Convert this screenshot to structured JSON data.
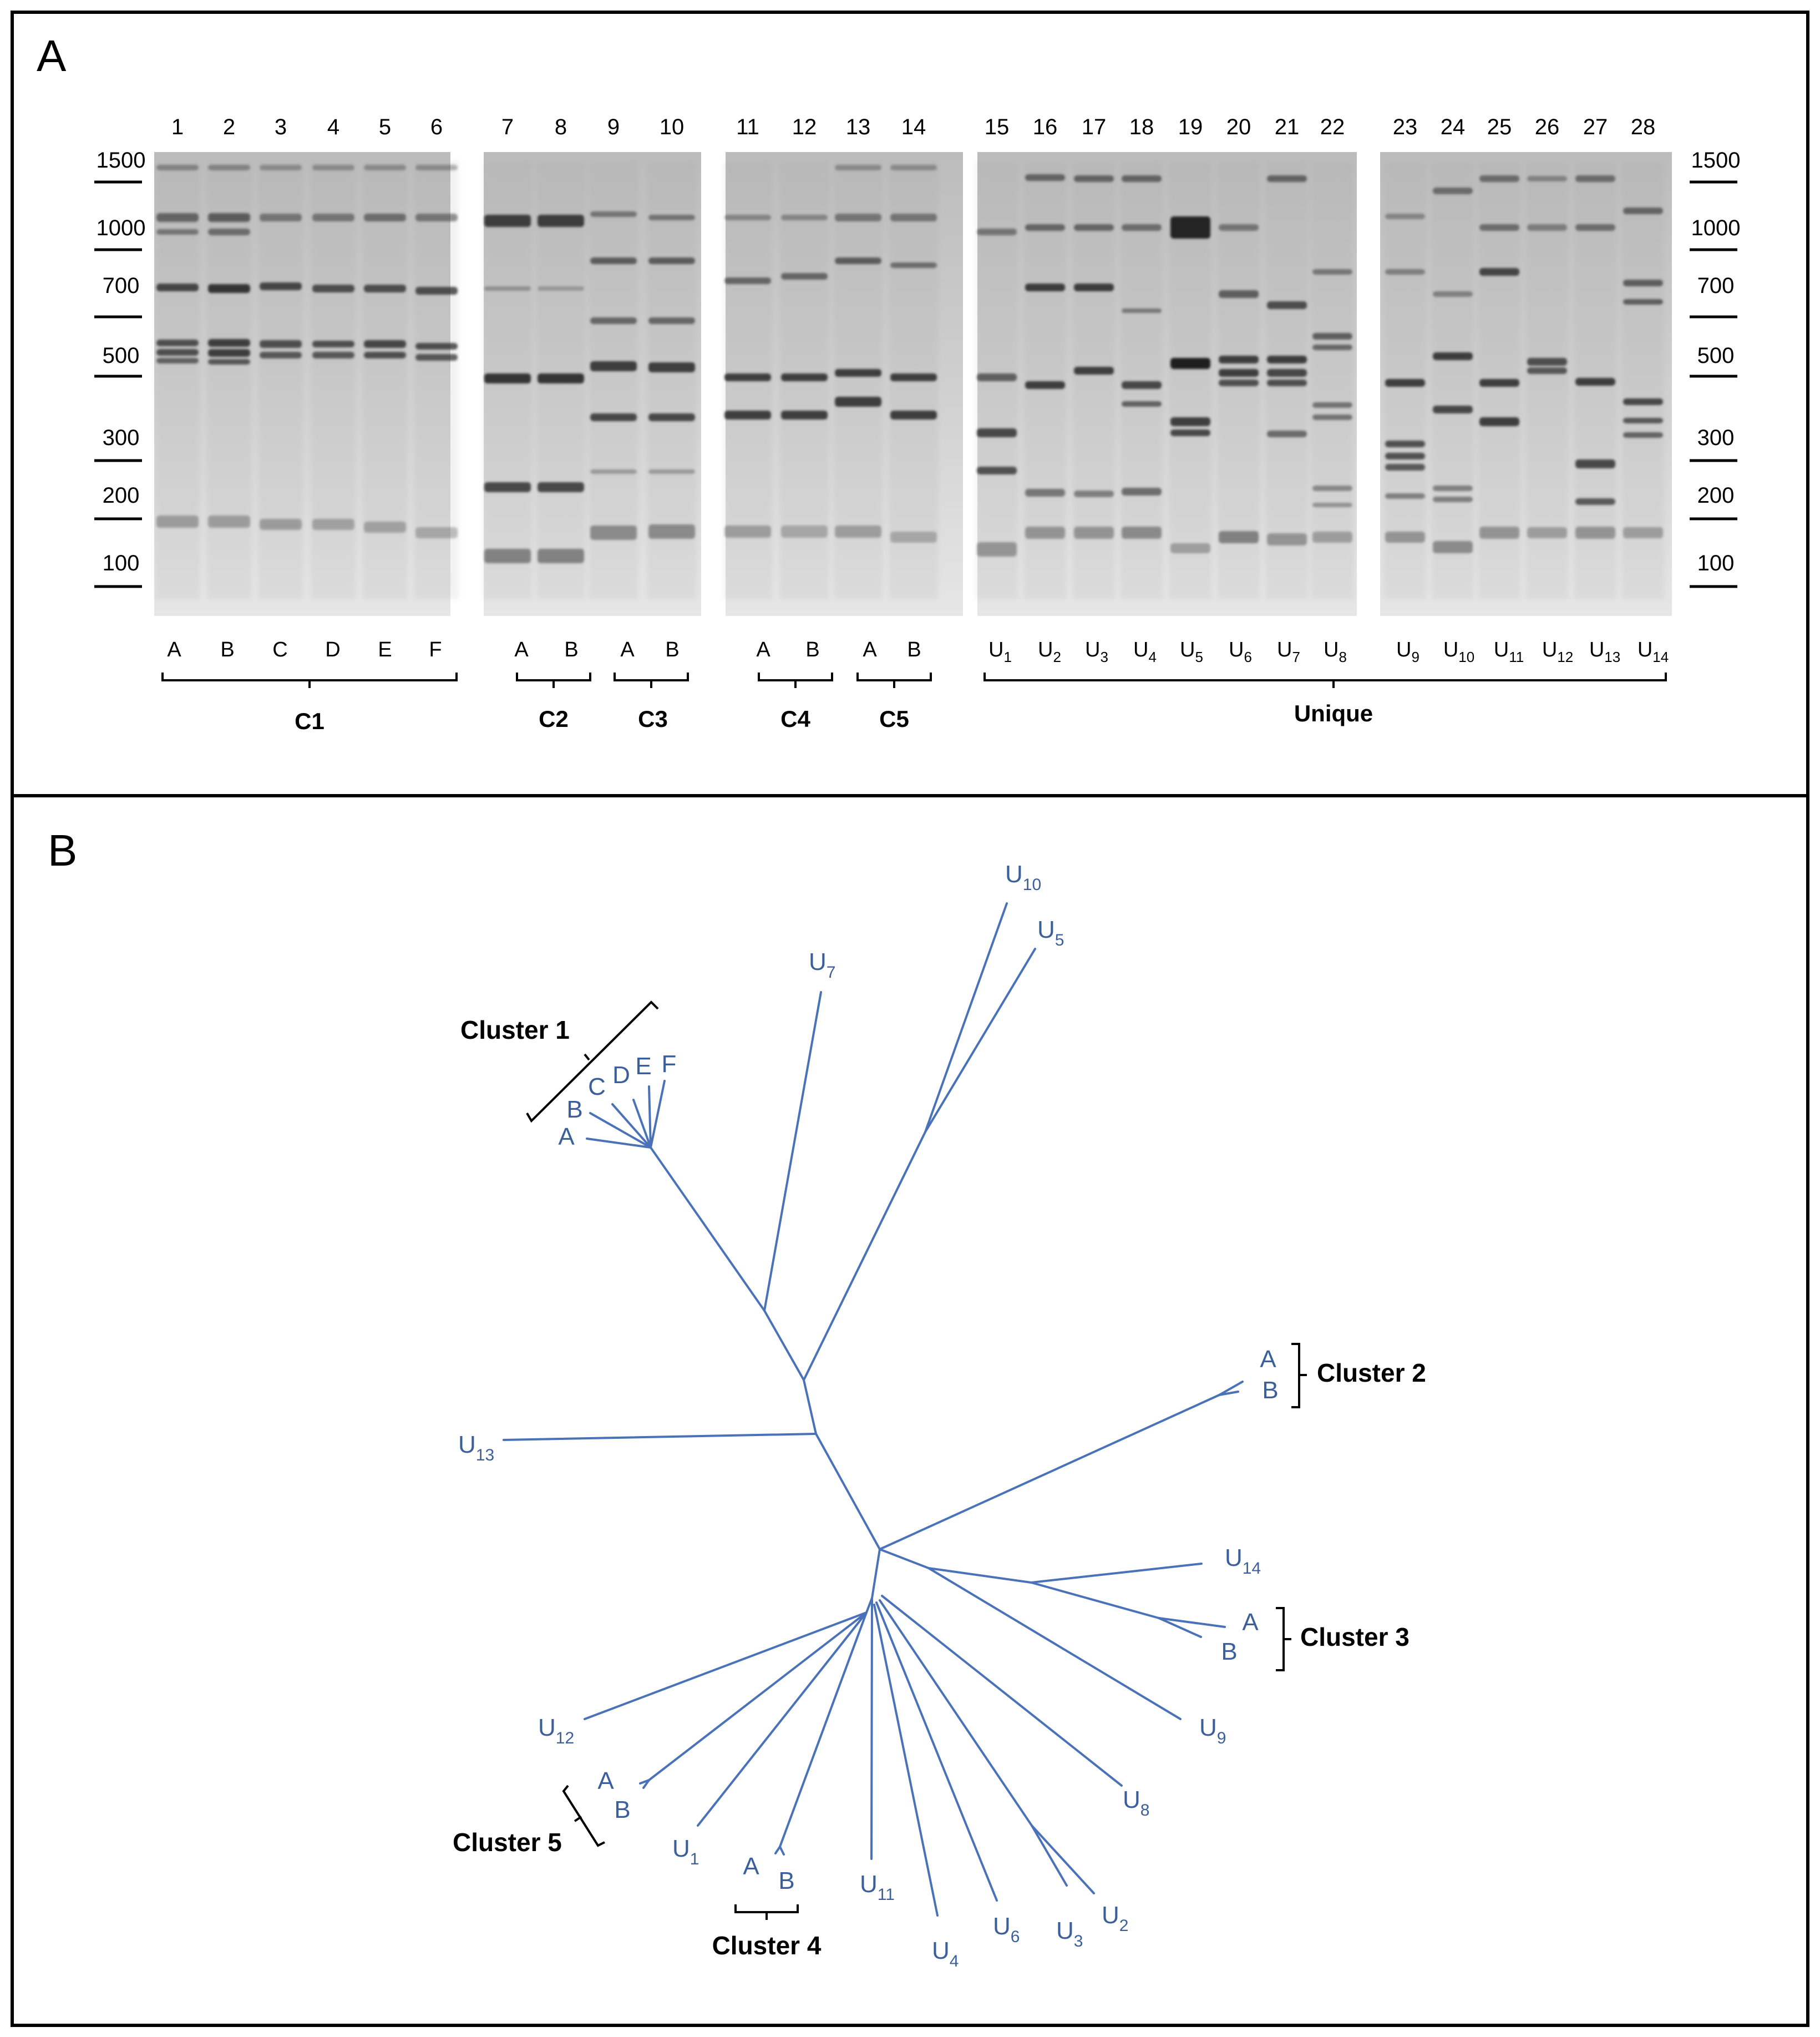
{
  "panel_a": {
    "label": "A",
    "lane_numbers": [
      "1",
      "2",
      "3",
      "4",
      "5",
      "6",
      "7",
      "8",
      "9",
      "10",
      "11",
      "12",
      "13",
      "14",
      "15",
      "16",
      "17",
      "18",
      "19",
      "20",
      "21",
      "22",
      "23",
      "24",
      "25",
      "26",
      "27",
      "28"
    ],
    "size_marker_labels": [
      "1500",
      "1000",
      "700",
      "500",
      "300",
      "200",
      "100"
    ],
    "lane_labels_groups": [
      [
        "A",
        "B",
        "C",
        "D",
        "E",
        "F"
      ],
      [
        "A",
        "B",
        "A",
        "B"
      ],
      [
        "A",
        "B",
        "A",
        "B"
      ]
    ],
    "unique_labels": [
      {
        "base": "U",
        "sub": "1"
      },
      {
        "base": "U",
        "sub": "2"
      },
      {
        "base": "U",
        "sub": "3"
      },
      {
        "base": "U",
        "sub": "4"
      },
      {
        "base": "U",
        "sub": "5"
      },
      {
        "base": "U",
        "sub": "6"
      },
      {
        "base": "U",
        "sub": "7"
      },
      {
        "base": "U",
        "sub": "8"
      },
      {
        "base": "U",
        "sub": "9"
      },
      {
        "base": "U",
        "sub": "10"
      },
      {
        "base": "U",
        "sub": "11"
      },
      {
        "base": "U",
        "sub": "12"
      },
      {
        "base": "U",
        "sub": "13"
      },
      {
        "base": "U",
        "sub": "14"
      }
    ],
    "group_labels": [
      "C1",
      "C2",
      "C3",
      "C4",
      "C5",
      "Unique"
    ]
  },
  "panel_b": {
    "label": "B",
    "tree_color": "#4a72b8",
    "leaves": {
      "cluster1": [
        "A",
        "B",
        "C",
        "D",
        "E",
        "F"
      ],
      "cluster2": [
        "A",
        "B"
      ],
      "cluster3": [
        "A",
        "B"
      ],
      "cluster4": [
        "A",
        "B"
      ],
      "cluster5": [
        "A",
        "B"
      ],
      "unique": [
        {
          "base": "U",
          "sub": "10"
        },
        {
          "base": "U",
          "sub": "5"
        },
        {
          "base": "U",
          "sub": "7"
        },
        {
          "base": "U",
          "sub": "13"
        },
        {
          "base": "U",
          "sub": "14"
        },
        {
          "base": "U",
          "sub": "9"
        },
        {
          "base": "U",
          "sub": "8"
        },
        {
          "base": "U",
          "sub": "2"
        },
        {
          "base": "U",
          "sub": "3"
        },
        {
          "base": "U",
          "sub": "6"
        },
        {
          "base": "U",
          "sub": "4"
        },
        {
          "base": "U",
          "sub": "11"
        },
        {
          "base": "U",
          "sub": "1"
        },
        {
          "base": "U",
          "sub": "12"
        }
      ]
    },
    "cluster_labels": [
      "Cluster 1",
      "Cluster 2",
      "Cluster 3",
      "Cluster 4",
      "Cluster 5"
    ]
  }
}
